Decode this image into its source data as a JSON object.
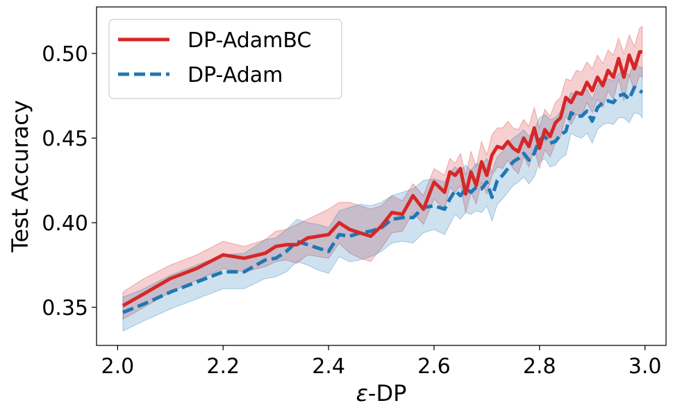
{
  "chart_data": {
    "type": "line",
    "title": "",
    "xlabel_italic": "ε",
    "xlabel_rest": "-DP",
    "ylabel": "Test Accuracy",
    "xlim": [
      1.96,
      3.04
    ],
    "ylim": [
      0.3275,
      0.5275
    ],
    "xticks": [
      2.0,
      2.2,
      2.4,
      2.6,
      2.8,
      3.0
    ],
    "xtick_labels": [
      "2.0",
      "2.2",
      "2.4",
      "2.6",
      "2.8",
      "3.0"
    ],
    "yticks": [
      0.35,
      0.4,
      0.45,
      0.5
    ],
    "ytick_labels": [
      "0.35",
      "0.40",
      "0.45",
      "0.50"
    ],
    "legend_position": "top-left",
    "series": [
      {
        "name": "DP-AdamBC",
        "color": "#d62728",
        "style": "solid",
        "x": [
          2.01,
          2.05,
          2.1,
          2.15,
          2.2,
          2.24,
          2.28,
          2.3,
          2.32,
          2.34,
          2.36,
          2.38,
          2.4,
          2.42,
          2.44,
          2.46,
          2.48,
          2.5,
          2.52,
          2.54,
          2.56,
          2.58,
          2.6,
          2.62,
          2.63,
          2.64,
          2.65,
          2.66,
          2.67,
          2.68,
          2.69,
          2.7,
          2.71,
          2.72,
          2.73,
          2.74,
          2.75,
          2.76,
          2.77,
          2.78,
          2.79,
          2.8,
          2.81,
          2.82,
          2.83,
          2.84,
          2.85,
          2.86,
          2.87,
          2.88,
          2.89,
          2.9,
          2.91,
          2.92,
          2.93,
          2.94,
          2.95,
          2.96,
          2.97,
          2.98,
          2.99,
          2.995
        ],
        "y": [
          0.351,
          0.358,
          0.367,
          0.373,
          0.381,
          0.379,
          0.382,
          0.386,
          0.387,
          0.387,
          0.391,
          0.392,
          0.393,
          0.4,
          0.396,
          0.394,
          0.392,
          0.398,
          0.406,
          0.405,
          0.416,
          0.408,
          0.424,
          0.418,
          0.43,
          0.428,
          0.432,
          0.417,
          0.43,
          0.422,
          0.436,
          0.428,
          0.44,
          0.445,
          0.444,
          0.448,
          0.444,
          0.442,
          0.45,
          0.445,
          0.456,
          0.444,
          0.455,
          0.451,
          0.459,
          0.462,
          0.474,
          0.471,
          0.477,
          0.476,
          0.483,
          0.478,
          0.486,
          0.481,
          0.49,
          0.486,
          0.497,
          0.486,
          0.499,
          0.491,
          0.501,
          0.501
        ],
        "band_upper": [
          0.359,
          0.367,
          0.375,
          0.381,
          0.389,
          0.386,
          0.39,
          0.395,
          0.396,
          0.399,
          0.402,
          0.405,
          0.408,
          0.412,
          0.412,
          0.41,
          0.408,
          0.41,
          0.416,
          0.413,
          0.423,
          0.416,
          0.432,
          0.428,
          0.438,
          0.435,
          0.441,
          0.428,
          0.442,
          0.433,
          0.448,
          0.44,
          0.452,
          0.456,
          0.456,
          0.46,
          0.456,
          0.455,
          0.461,
          0.457,
          0.468,
          0.456,
          0.467,
          0.463,
          0.471,
          0.474,
          0.485,
          0.484,
          0.49,
          0.489,
          0.495,
          0.491,
          0.499,
          0.494,
          0.502,
          0.499,
          0.509,
          0.5,
          0.511,
          0.504,
          0.515,
          0.516
        ],
        "band_lower": [
          0.343,
          0.35,
          0.359,
          0.366,
          0.373,
          0.371,
          0.374,
          0.377,
          0.378,
          0.376,
          0.381,
          0.38,
          0.379,
          0.388,
          0.382,
          0.379,
          0.377,
          0.385,
          0.394,
          0.395,
          0.406,
          0.399,
          0.414,
          0.408,
          0.421,
          0.418,
          0.422,
          0.406,
          0.418,
          0.411,
          0.424,
          0.417,
          0.428,
          0.433,
          0.432,
          0.437,
          0.432,
          0.429,
          0.439,
          0.433,
          0.444,
          0.432,
          0.443,
          0.439,
          0.447,
          0.451,
          0.463,
          0.458,
          0.464,
          0.463,
          0.471,
          0.465,
          0.473,
          0.468,
          0.478,
          0.473,
          0.485,
          0.472,
          0.487,
          0.478,
          0.487,
          0.486
        ]
      },
      {
        "name": "DP-Adam",
        "color": "#1f77b4",
        "style": "dashed",
        "x": [
          2.01,
          2.05,
          2.1,
          2.15,
          2.2,
          2.24,
          2.28,
          2.3,
          2.32,
          2.34,
          2.36,
          2.38,
          2.4,
          2.42,
          2.44,
          2.46,
          2.48,
          2.5,
          2.52,
          2.54,
          2.56,
          2.58,
          2.6,
          2.62,
          2.63,
          2.64,
          2.65,
          2.66,
          2.67,
          2.68,
          2.69,
          2.7,
          2.71,
          2.72,
          2.73,
          2.74,
          2.75,
          2.76,
          2.77,
          2.78,
          2.79,
          2.8,
          2.81,
          2.82,
          2.83,
          2.84,
          2.85,
          2.86,
          2.87,
          2.88,
          2.89,
          2.9,
          2.91,
          2.92,
          2.93,
          2.94,
          2.95,
          2.96,
          2.97,
          2.98,
          2.99,
          2.995
        ],
        "y": [
          0.347,
          0.352,
          0.359,
          0.365,
          0.371,
          0.371,
          0.378,
          0.379,
          0.383,
          0.389,
          0.387,
          0.385,
          0.383,
          0.393,
          0.392,
          0.394,
          0.395,
          0.397,
          0.402,
          0.403,
          0.403,
          0.409,
          0.41,
          0.408,
          0.414,
          0.419,
          0.416,
          0.42,
          0.418,
          0.421,
          0.42,
          0.424,
          0.415,
          0.425,
          0.428,
          0.432,
          0.436,
          0.438,
          0.441,
          0.437,
          0.441,
          0.449,
          0.451,
          0.447,
          0.448,
          0.452,
          0.454,
          0.465,
          0.463,
          0.463,
          0.466,
          0.46,
          0.468,
          0.471,
          0.472,
          0.471,
          0.475,
          0.476,
          0.473,
          0.48,
          0.478,
          0.477
        ],
        "band_upper": [
          0.356,
          0.361,
          0.369,
          0.375,
          0.381,
          0.382,
          0.39,
          0.391,
          0.396,
          0.402,
          0.4,
          0.399,
          0.397,
          0.407,
          0.409,
          0.411,
          0.41,
          0.412,
          0.416,
          0.418,
          0.42,
          0.425,
          0.426,
          0.424,
          0.43,
          0.433,
          0.43,
          0.434,
          0.431,
          0.435,
          0.434,
          0.438,
          0.43,
          0.439,
          0.442,
          0.447,
          0.45,
          0.452,
          0.455,
          0.451,
          0.455,
          0.462,
          0.464,
          0.461,
          0.462,
          0.466,
          0.468,
          0.477,
          0.475,
          0.476,
          0.479,
          0.473,
          0.481,
          0.484,
          0.485,
          0.484,
          0.488,
          0.49,
          0.487,
          0.495,
          0.492,
          0.492
        ],
        "band_lower": [
          0.336,
          0.342,
          0.349,
          0.355,
          0.361,
          0.361,
          0.367,
          0.368,
          0.371,
          0.377,
          0.375,
          0.372,
          0.37,
          0.38,
          0.377,
          0.378,
          0.38,
          0.383,
          0.388,
          0.389,
          0.388,
          0.394,
          0.396,
          0.393,
          0.399,
          0.405,
          0.402,
          0.406,
          0.405,
          0.407,
          0.406,
          0.41,
          0.401,
          0.411,
          0.414,
          0.418,
          0.422,
          0.424,
          0.427,
          0.423,
          0.427,
          0.436,
          0.438,
          0.433,
          0.434,
          0.438,
          0.44,
          0.453,
          0.451,
          0.45,
          0.453,
          0.447,
          0.455,
          0.458,
          0.459,
          0.458,
          0.462,
          0.462,
          0.459,
          0.465,
          0.464,
          0.462
        ]
      }
    ]
  }
}
